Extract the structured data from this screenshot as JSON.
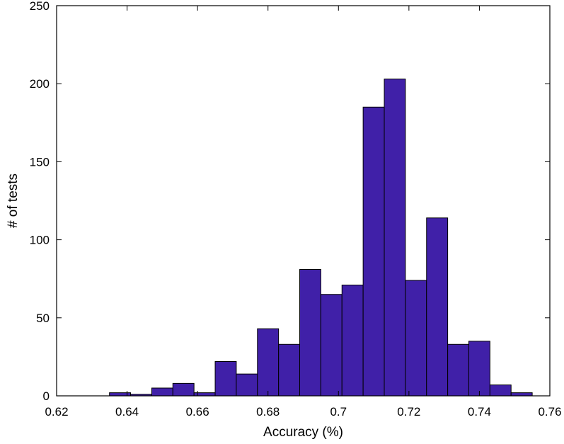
{
  "chart_data": {
    "type": "bar",
    "title": "",
    "xlabel": "Accuracy (%)",
    "ylabel": "# of tests",
    "xlim": [
      0.62,
      0.76
    ],
    "ylim": [
      0,
      250
    ],
    "x_ticks": [
      "0.62",
      "0.64",
      "0.66",
      "0.68",
      "0.7",
      "0.72",
      "0.74",
      "0.76"
    ],
    "y_ticks": [
      "0",
      "50",
      "100",
      "150",
      "200",
      "250"
    ],
    "bin_width": 0.006,
    "bin_start": 0.635,
    "bins": [
      {
        "x0": 0.635,
        "x1": 0.641,
        "value": 2
      },
      {
        "x0": 0.641,
        "x1": 0.647,
        "value": 1
      },
      {
        "x0": 0.647,
        "x1": 0.653,
        "value": 5
      },
      {
        "x0": 0.653,
        "x1": 0.659,
        "value": 8
      },
      {
        "x0": 0.659,
        "x1": 0.665,
        "value": 2
      },
      {
        "x0": 0.665,
        "x1": 0.671,
        "value": 22
      },
      {
        "x0": 0.671,
        "x1": 0.677,
        "value": 14
      },
      {
        "x0": 0.677,
        "x1": 0.683,
        "value": 43
      },
      {
        "x0": 0.683,
        "x1": 0.689,
        "value": 33
      },
      {
        "x0": 0.689,
        "x1": 0.695,
        "value": 81
      },
      {
        "x0": 0.695,
        "x1": 0.701,
        "value": 65
      },
      {
        "x0": 0.701,
        "x1": 0.707,
        "value": 71
      },
      {
        "x0": 0.707,
        "x1": 0.713,
        "value": 185
      },
      {
        "x0": 0.713,
        "x1": 0.719,
        "value": 203
      },
      {
        "x0": 0.719,
        "x1": 0.725,
        "value": 74
      },
      {
        "x0": 0.725,
        "x1": 0.731,
        "value": 114
      },
      {
        "x0": 0.731,
        "x1": 0.737,
        "value": 33
      },
      {
        "x0": 0.737,
        "x1": 0.743,
        "value": 35
      },
      {
        "x0": 0.743,
        "x1": 0.749,
        "value": 7
      },
      {
        "x0": 0.749,
        "x1": 0.755,
        "value": 2
      }
    ],
    "grid": false,
    "legend": "none"
  },
  "colors": {
    "bar_fill": "#4020a8",
    "bar_stroke": "#000000",
    "axis": "#000000",
    "background": "#ffffff"
  }
}
